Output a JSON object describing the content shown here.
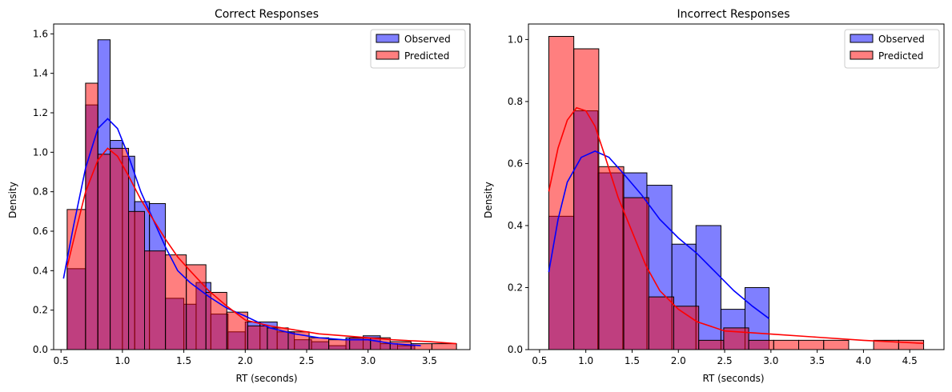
{
  "chart_data": [
    {
      "type": "histogram",
      "title": "Correct Responses",
      "xlabel": "RT (seconds)",
      "ylabel": "Density",
      "xlim": [
        0.44,
        3.83
      ],
      "ylim": [
        0,
        1.65
      ],
      "xticks": [
        0.5,
        1.0,
        1.5,
        2.0,
        2.5,
        3.0,
        3.5
      ],
      "yticks": [
        0.0,
        0.2,
        0.4,
        0.6,
        0.8,
        1.0,
        1.2,
        1.4,
        1.6
      ],
      "legend_position": "top-right",
      "series": [
        {
          "name": "Observed",
          "color": "#0000ff",
          "bins": [
            {
              "x0": 0.55,
              "x1": 0.7,
              "v": 0.41
            },
            {
              "x0": 0.7,
              "x1": 0.8,
              "v": 1.24
            },
            {
              "x0": 0.8,
              "x1": 0.9,
              "v": 1.57
            },
            {
              "x0": 0.9,
              "x1": 1.0,
              "v": 1.06
            },
            {
              "x0": 1.0,
              "x1": 1.1,
              "v": 0.98
            },
            {
              "x0": 1.1,
              "x1": 1.22,
              "v": 0.75
            },
            {
              "x0": 1.22,
              "x1": 1.35,
              "v": 0.74
            },
            {
              "x0": 1.35,
              "x1": 1.5,
              "v": 0.26
            },
            {
              "x0": 1.5,
              "x1": 1.6,
              "v": 0.23
            },
            {
              "x0": 1.6,
              "x1": 1.72,
              "v": 0.34
            },
            {
              "x0": 1.72,
              "x1": 1.86,
              "v": 0.18
            },
            {
              "x0": 1.86,
              "x1": 2.0,
              "v": 0.09
            },
            {
              "x0": 2.0,
              "x1": 2.12,
              "v": 0.14
            },
            {
              "x0": 2.12,
              "x1": 2.26,
              "v": 0.14
            },
            {
              "x0": 2.26,
              "x1": 2.4,
              "v": 0.09
            },
            {
              "x0": 2.4,
              "x1": 2.54,
              "v": 0.05
            },
            {
              "x0": 2.54,
              "x1": 2.68,
              "v": 0.04
            },
            {
              "x0": 2.68,
              "x1": 2.82,
              "v": 0.02
            },
            {
              "x0": 2.82,
              "x1": 2.96,
              "v": 0.06
            },
            {
              "x0": 2.96,
              "x1": 3.1,
              "v": 0.07
            },
            {
              "x0": 3.1,
              "x1": 3.24,
              "v": 0.03
            },
            {
              "x0": 3.24,
              "x1": 3.38,
              "v": 0.02
            }
          ],
          "kde": [
            [
              0.52,
              0.36
            ],
            [
              0.6,
              0.62
            ],
            [
              0.7,
              0.92
            ],
            [
              0.8,
              1.12
            ],
            [
              0.88,
              1.17
            ],
            [
              0.96,
              1.12
            ],
            [
              1.05,
              0.98
            ],
            [
              1.15,
              0.8
            ],
            [
              1.25,
              0.66
            ],
            [
              1.35,
              0.52
            ],
            [
              1.45,
              0.4
            ],
            [
              1.55,
              0.34
            ],
            [
              1.7,
              0.27
            ],
            [
              1.85,
              0.21
            ],
            [
              2.0,
              0.17
            ],
            [
              2.2,
              0.11
            ],
            [
              2.4,
              0.08
            ],
            [
              2.6,
              0.06
            ],
            [
              2.8,
              0.05
            ],
            [
              3.0,
              0.05
            ],
            [
              3.2,
              0.03
            ],
            [
              3.43,
              0.02
            ]
          ]
        },
        {
          "name": "Predicted",
          "color": "#ff0000",
          "bins": [
            {
              "x0": 0.55,
              "x1": 0.7,
              "v": 0.71
            },
            {
              "x0": 0.7,
              "x1": 0.8,
              "v": 1.35
            },
            {
              "x0": 0.8,
              "x1": 0.9,
              "v": 0.99
            },
            {
              "x0": 0.9,
              "x1": 1.05,
              "v": 1.02
            },
            {
              "x0": 1.05,
              "x1": 1.18,
              "v": 0.7
            },
            {
              "x0": 1.18,
              "x1": 1.35,
              "v": 0.5
            },
            {
              "x0": 1.35,
              "x1": 1.52,
              "v": 0.48
            },
            {
              "x0": 1.52,
              "x1": 1.68,
              "v": 0.43
            },
            {
              "x0": 1.68,
              "x1": 1.85,
              "v": 0.29
            },
            {
              "x0": 1.85,
              "x1": 2.02,
              "v": 0.19
            },
            {
              "x0": 2.02,
              "x1": 2.18,
              "v": 0.12
            },
            {
              "x0": 2.18,
              "x1": 2.35,
              "v": 0.11
            },
            {
              "x0": 2.35,
              "x1": 2.52,
              "v": 0.09
            },
            {
              "x0": 2.52,
              "x1": 2.68,
              "v": 0.06
            },
            {
              "x0": 2.68,
              "x1": 2.85,
              "v": 0.05
            },
            {
              "x0": 2.85,
              "x1": 3.02,
              "v": 0.06
            },
            {
              "x0": 3.02,
              "x1": 3.18,
              "v": 0.06
            },
            {
              "x0": 3.18,
              "x1": 3.35,
              "v": 0.04
            },
            {
              "x0": 3.35,
              "x1": 3.52,
              "v": 0.03
            },
            {
              "x0": 3.52,
              "x1": 3.72,
              "v": 0.03
            }
          ],
          "kde": [
            [
              0.55,
              0.42
            ],
            [
              0.62,
              0.6
            ],
            [
              0.7,
              0.8
            ],
            [
              0.8,
              0.96
            ],
            [
              0.88,
              1.02
            ],
            [
              0.96,
              0.98
            ],
            [
              1.05,
              0.88
            ],
            [
              1.15,
              0.76
            ],
            [
              1.25,
              0.66
            ],
            [
              1.35,
              0.56
            ],
            [
              1.45,
              0.47
            ],
            [
              1.55,
              0.4
            ],
            [
              1.7,
              0.3
            ],
            [
              1.85,
              0.22
            ],
            [
              2.0,
              0.15
            ],
            [
              2.2,
              0.12
            ],
            [
              2.4,
              0.1
            ],
            [
              2.6,
              0.08
            ],
            [
              2.8,
              0.07
            ],
            [
              3.0,
              0.06
            ],
            [
              3.2,
              0.05
            ],
            [
              3.5,
              0.04
            ],
            [
              3.72,
              0.03
            ]
          ]
        }
      ]
    },
    {
      "type": "histogram",
      "title": "Incorrect Responses",
      "xlabel": "RT (seconds)",
      "ylabel": "Density",
      "xlim": [
        0.38,
        4.87
      ],
      "ylim": [
        0,
        1.05
      ],
      "xticks": [
        0.5,
        1.0,
        1.5,
        2.0,
        2.5,
        3.0,
        3.5,
        4.0,
        4.5
      ],
      "yticks": [
        0.0,
        0.2,
        0.4,
        0.6,
        0.8,
        1.0
      ],
      "legend_position": "top-right",
      "series": [
        {
          "name": "Observed",
          "color": "#0000ff",
          "bins": [
            {
              "x0": 0.6,
              "x1": 0.87,
              "v": 0.43
            },
            {
              "x0": 0.87,
              "x1": 1.13,
              "v": 0.77
            },
            {
              "x0": 1.13,
              "x1": 1.4,
              "v": 0.57
            },
            {
              "x0": 1.4,
              "x1": 1.66,
              "v": 0.57
            },
            {
              "x0": 1.66,
              "x1": 1.93,
              "v": 0.53
            },
            {
              "x0": 1.93,
              "x1": 2.19,
              "v": 0.34
            },
            {
              "x0": 2.19,
              "x1": 2.46,
              "v": 0.4
            },
            {
              "x0": 2.46,
              "x1": 2.72,
              "v": 0.13
            },
            {
              "x0": 2.72,
              "x1": 2.98,
              "v": 0.2
            }
          ],
          "kde": [
            [
              0.6,
              0.25
            ],
            [
              0.7,
              0.42
            ],
            [
              0.8,
              0.54
            ],
            [
              0.95,
              0.62
            ],
            [
              1.1,
              0.64
            ],
            [
              1.25,
              0.62
            ],
            [
              1.4,
              0.57
            ],
            [
              1.6,
              0.5
            ],
            [
              1.8,
              0.42
            ],
            [
              2.0,
              0.36
            ],
            [
              2.2,
              0.31
            ],
            [
              2.4,
              0.25
            ],
            [
              2.6,
              0.19
            ],
            [
              2.8,
              0.14
            ],
            [
              2.98,
              0.1
            ]
          ]
        },
        {
          "name": "Predicted",
          "color": "#ff0000",
          "bins": [
            {
              "x0": 0.6,
              "x1": 0.87,
              "v": 1.01
            },
            {
              "x0": 0.87,
              "x1": 1.14,
              "v": 0.97
            },
            {
              "x0": 1.14,
              "x1": 1.41,
              "v": 0.59
            },
            {
              "x0": 1.41,
              "x1": 1.68,
              "v": 0.49
            },
            {
              "x0": 1.68,
              "x1": 1.95,
              "v": 0.17
            },
            {
              "x0": 1.95,
              "x1": 2.22,
              "v": 0.14
            },
            {
              "x0": 2.22,
              "x1": 2.49,
              "v": 0.03
            },
            {
              "x0": 2.49,
              "x1": 2.76,
              "v": 0.07
            },
            {
              "x0": 2.76,
              "x1": 3.03,
              "v": 0.03
            },
            {
              "x0": 3.03,
              "x1": 3.3,
              "v": 0.03
            },
            {
              "x0": 3.3,
              "x1": 3.57,
              "v": 0.03
            },
            {
              "x0": 3.57,
              "x1": 3.84,
              "v": 0.03
            },
            {
              "x0": 4.11,
              "x1": 4.38,
              "v": 0.03
            },
            {
              "x0": 4.38,
              "x1": 4.65,
              "v": 0.03
            }
          ],
          "kde": [
            [
              0.6,
              0.51
            ],
            [
              0.7,
              0.65
            ],
            [
              0.8,
              0.74
            ],
            [
              0.9,
              0.78
            ],
            [
              1.0,
              0.77
            ],
            [
              1.1,
              0.72
            ],
            [
              1.2,
              0.63
            ],
            [
              1.35,
              0.49
            ],
            [
              1.5,
              0.38
            ],
            [
              1.65,
              0.27
            ],
            [
              1.8,
              0.19
            ],
            [
              2.0,
              0.13
            ],
            [
              2.2,
              0.09
            ],
            [
              2.5,
              0.06
            ],
            [
              3.0,
              0.05
            ],
            [
              3.5,
              0.04
            ],
            [
              4.0,
              0.03
            ],
            [
              4.65,
              0.02
            ]
          ]
        }
      ]
    }
  ]
}
